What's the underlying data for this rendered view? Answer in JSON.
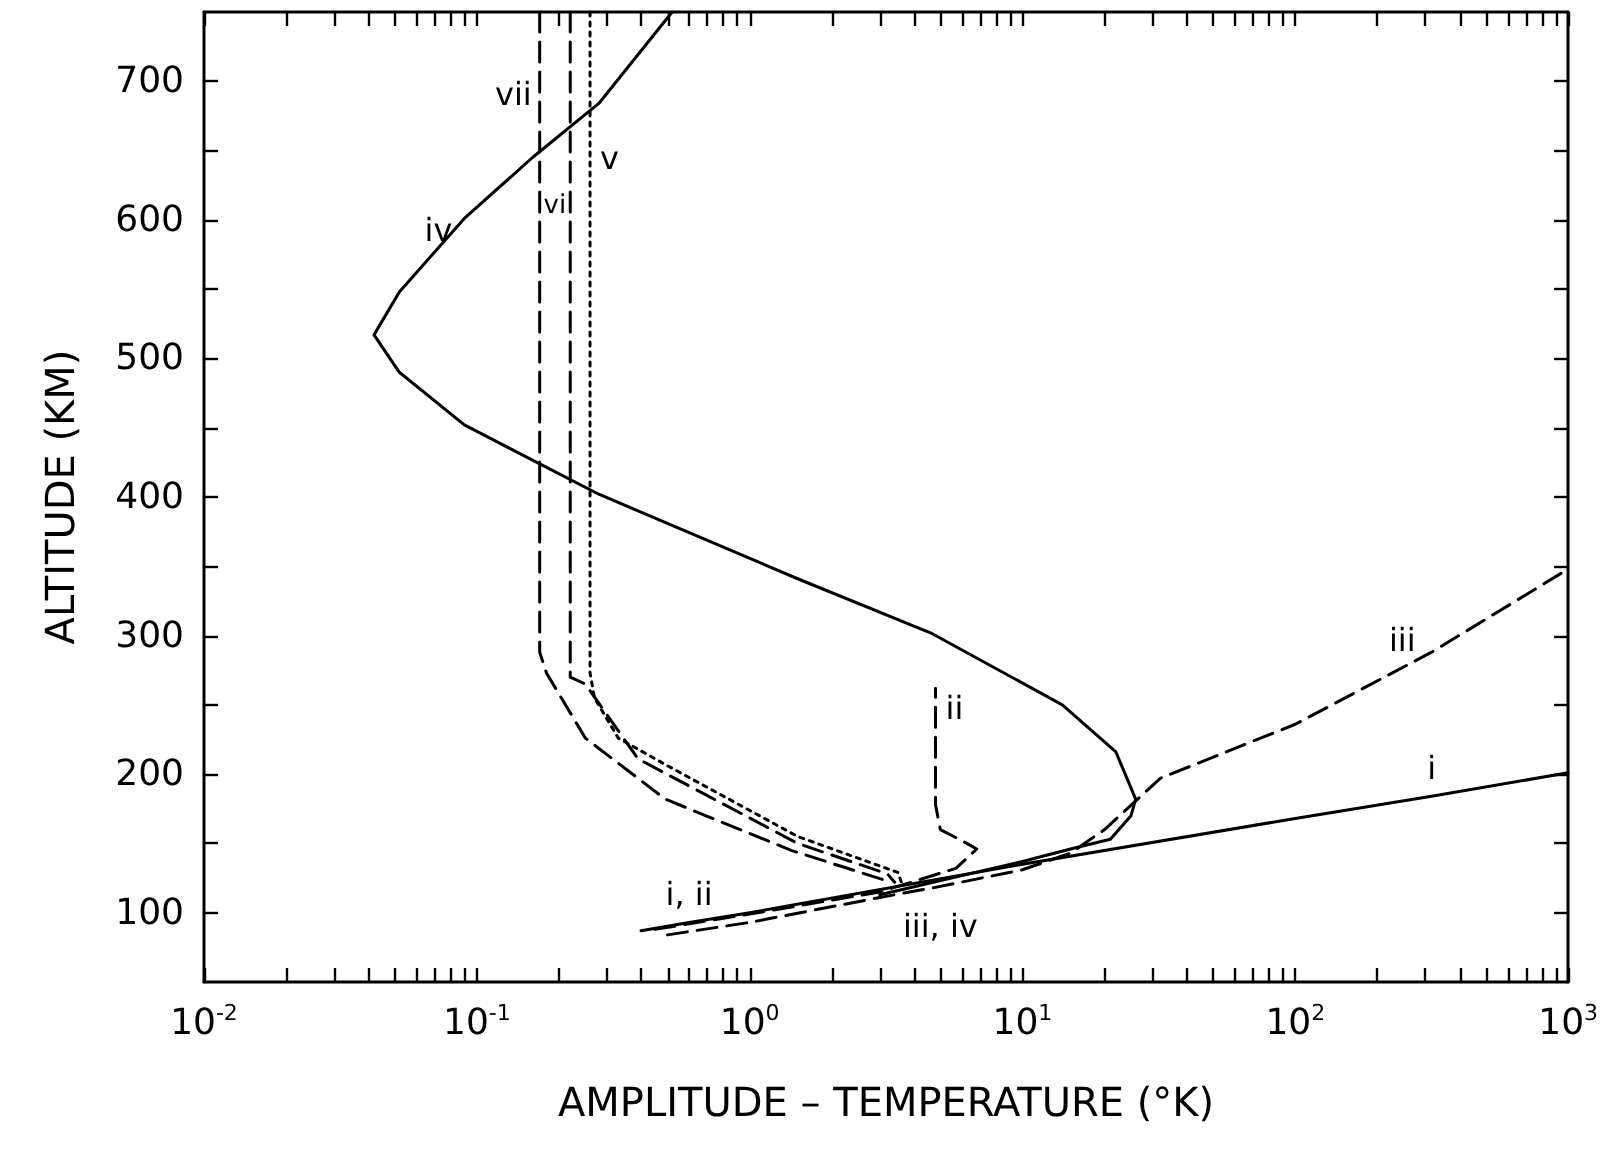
{
  "chart_data": {
    "type": "line",
    "xlabel": "AMPLITUDE – TEMPERATURE (°K)",
    "ylabel": "ALTITUDE (KM)",
    "log": "x",
    "grid": false,
    "marker": "none",
    "xlim": [
      0.01,
      1000
    ],
    "ylim": [
      50,
      750
    ],
    "xticks": [
      {
        "value": 0.01,
        "label": "10$^{-2}$"
      },
      {
        "value": 0.02,
        "label": null
      },
      {
        "value": 0.03,
        "label": null
      },
      {
        "value": 0.04,
        "label": null
      },
      {
        "value": 0.05,
        "label": null
      },
      {
        "value": 0.06,
        "label": null
      },
      {
        "value": 0.07,
        "label": null
      },
      {
        "value": 0.08,
        "label": null
      },
      {
        "value": 0.09,
        "label": null
      },
      {
        "value": 0.1,
        "label": "10$^{-1}$"
      },
      {
        "value": 0.2,
        "label": null
      },
      {
        "value": 0.3,
        "label": null
      },
      {
        "value": 0.4,
        "label": null
      },
      {
        "value": 0.5,
        "label": null
      },
      {
        "value": 0.6,
        "label": null
      },
      {
        "value": 0.7,
        "label": null
      },
      {
        "value": 0.8,
        "label": null
      },
      {
        "value": 0.9,
        "label": null
      },
      {
        "value": 1,
        "label": "10$^{0}$"
      },
      {
        "value": 2,
        "label": null
      },
      {
        "value": 3,
        "label": null
      },
      {
        "value": 4,
        "label": null
      },
      {
        "value": 5,
        "label": null
      },
      {
        "value": 6,
        "label": null
      },
      {
        "value": 7,
        "label": null
      },
      {
        "value": 8,
        "label": null
      },
      {
        "value": 9,
        "label": null
      },
      {
        "value": 10,
        "label": "10$^{1}$"
      },
      {
        "value": 20,
        "label": null
      },
      {
        "value": 30,
        "label": null
      },
      {
        "value": 40,
        "label": null
      },
      {
        "value": 50,
        "label": null
      },
      {
        "value": 60,
        "label": null
      },
      {
        "value": 70,
        "label": null
      },
      {
        "value": 80,
        "label": null
      },
      {
        "value": 90,
        "label": null
      },
      {
        "value": 100,
        "label": "10$^{2}$"
      },
      {
        "value": 200,
        "label": null
      },
      {
        "value": 300,
        "label": null
      },
      {
        "value": 400,
        "label": null
      },
      {
        "value": 500,
        "label": null
      },
      {
        "value": 600,
        "label": null
      },
      {
        "value": 700,
        "label": null
      },
      {
        "value": 800,
        "label": null
      },
      {
        "value": 900,
        "label": null
      },
      {
        "value": 1000,
        "label": "10$^{3}$"
      }
    ],
    "yticks": [
      100,
      {
        "value": 150,
        "label": null
      },
      200,
      {
        "value": 250,
        "label": null
      },
      300,
      {
        "value": 350,
        "label": null
      },
      400,
      {
        "value": 450,
        "label": null
      },
      500,
      {
        "value": 550,
        "label": null
      },
      600,
      {
        "value": 650,
        "label": null
      },
      700
    ],
    "series": [
      {
        "color": "#000000",
        "line_style": "solid",
        "x": [
          0.4,
          0.6,
          1,
          10,
          100,
          316,
          1000
        ],
        "values": [
          87,
          93,
          100,
          135,
          168,
          184,
          201
        ]
      },
      {
        "color": "#000000",
        "line_style": "dashed",
        "x": [
          0.45,
          1,
          3,
          5.7,
          6.8,
          6,
          5,
          4.8,
          4.8
        ],
        "values": [
          88,
          99,
          115,
          132,
          146,
          152,
          160,
          178,
          262
        ]
      },
      {
        "color": "#000000",
        "line_style": "dashed",
        "x": [
          0.5,
          1,
          3,
          5,
          10,
          15,
          20,
          32,
          100,
          316,
          1000
        ],
        "values": [
          84,
          93,
          111,
          119,
          131,
          143,
          160,
          197,
          236,
          288,
          348
        ]
      },
      {
        "color": "#000000",
        "line_style": "solid",
        "x": [
          3,
          10,
          15,
          21,
          25,
          26,
          22,
          14,
          4.6,
          1.5,
          0.28,
          0.09,
          0.052,
          0.042,
          0.052,
          0.09,
          0.16,
          0.28,
          0.52
        ],
        "values": [
          113,
          137,
          146,
          153,
          170,
          182,
          216,
          250,
          302,
          341,
          402,
          452,
          490,
          517,
          548,
          601,
          645,
          684,
          750
        ]
      },
      {
        "color": "#000000",
        "line_style": "dotted",
        "x": [
          0.26,
          0.26,
          0.26,
          0.27,
          0.33,
          0.49,
          1.5,
          3.5,
          3.6
        ],
        "values": [
          750,
          659,
          273,
          255,
          226,
          207,
          155,
          129,
          122
        ]
      },
      {
        "color": "#000000",
        "line_style": "dashed",
        "x": [
          0.22,
          0.22,
          0.22,
          0.25,
          0.39,
          1.5,
          3.2,
          3.4
        ],
        "values": [
          750,
          616,
          270,
          265,
          211,
          150,
          128,
          122
        ]
      },
      {
        "color": "#000000",
        "line_style": "dashed",
        "x": [
          0.17,
          0.17,
          0.17,
          0.18,
          0.25,
          0.49,
          1.42,
          3.3
        ],
        "values": [
          750,
          691,
          288,
          273,
          226,
          182,
          145,
          122
        ]
      }
    ],
    "annotations": [
      {
        "text": "i",
        "x": 316,
        "y": 184
      },
      {
        "text": "ii",
        "x": 4.8,
        "y": 262
      },
      {
        "text": "iii",
        "x": 316,
        "y": 288
      },
      {
        "text": "iii, iv",
        "x": 5,
        "y": 119
      },
      {
        "text": "i, ii",
        "x": 0.6,
        "y": 93
      },
      {
        "text": "iv",
        "x": 0.09,
        "y": 601
      },
      {
        "text": "v",
        "x": 0.26,
        "y": 659
      },
      {
        "text": "vi",
        "x": 0.22,
        "y": 616
      },
      {
        "text": "vii",
        "x": 0.17,
        "y": 691
      }
    ]
  }
}
